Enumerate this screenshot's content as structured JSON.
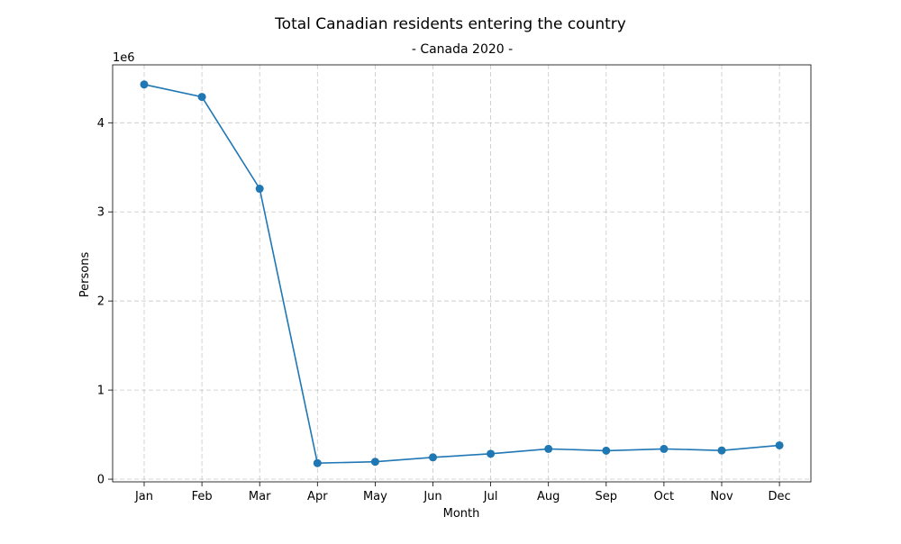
{
  "chart_data": {
    "type": "line",
    "title": "Total Canadian residents entering the country",
    "subtitle": "- Canada 2020 -",
    "xlabel": "Month",
    "ylabel": "Persons",
    "y_offset_label": "1e6",
    "y_scale": 1000000,
    "categories": [
      "Jan",
      "Feb",
      "Mar",
      "Apr",
      "May",
      "Jun",
      "Jul",
      "Aug",
      "Sep",
      "Oct",
      "Nov",
      "Dec"
    ],
    "values": [
      4430000,
      4290000,
      3260000,
      180000,
      195000,
      245000,
      285000,
      340000,
      320000,
      340000,
      322000,
      380000
    ],
    "ylim": [
      -30000,
      4650000
    ],
    "yticks": [
      0,
      1000000,
      2000000,
      3000000,
      4000000
    ],
    "ytick_labels": [
      "0",
      "1",
      "2",
      "3",
      "4"
    ],
    "grid": true,
    "line_color": "#1f77b4",
    "marker": "circle"
  }
}
